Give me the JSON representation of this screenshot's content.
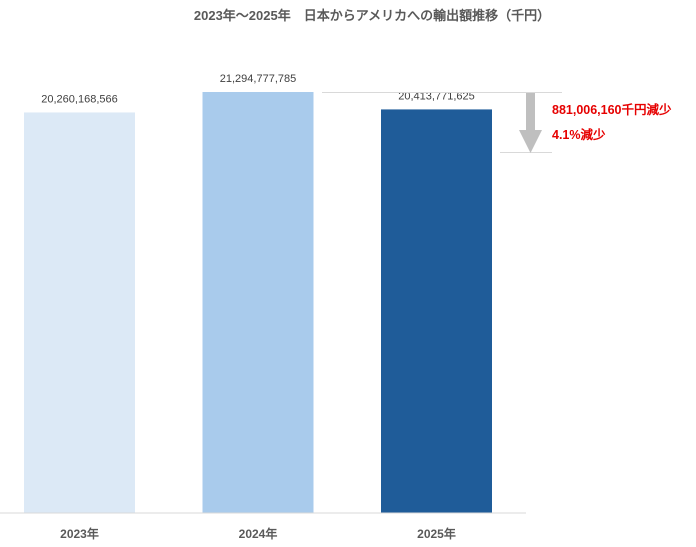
{
  "chart_data": {
    "type": "bar",
    "title": "2023年～2025年　日本からアメリカへの輸出額推移（千円）",
    "categories": [
      "2023年",
      "2024年",
      "2025年"
    ],
    "values": [
      20260168566,
      21294777785,
      20413771625
    ],
    "value_labels": [
      "20,260,168,566",
      "21,294,777,785",
      "20,413,771,625"
    ],
    "colors": [
      "#dce9f6",
      "#a9cbec",
      "#1f5c99"
    ],
    "ylim": [
      0,
      21294777785
    ],
    "grid": false,
    "legend": "none",
    "annotations": {
      "decrease_amount": "881,006,160千円減少",
      "decrease_percent": "4.1%減少",
      "color": "#e60000",
      "arrow_color": "#bfbfbf"
    }
  }
}
